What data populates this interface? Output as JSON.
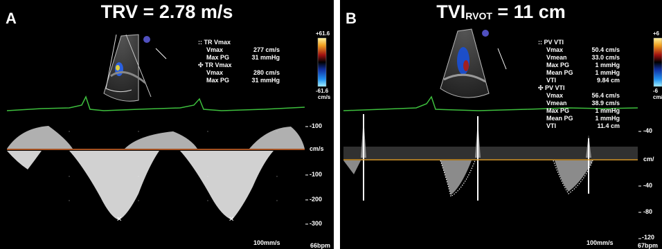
{
  "panel_a": {
    "letter": "A",
    "title": "TRV = 2.78 m/s",
    "measurements": {
      "group1": {
        "header": ":: TR Vmax",
        "rows": [
          {
            "label": "Vmax",
            "value": "277 cm/s"
          },
          {
            "label": "Max PG",
            "value": "31 mmHg"
          }
        ]
      },
      "group2": {
        "header": "✣ TR Vmax",
        "rows": [
          {
            "label": "Vmax",
            "value": "280 cm/s"
          },
          {
            "label": "Max PG",
            "value": "31 mmHg"
          }
        ]
      }
    },
    "color_scale": {
      "top": "+61.6",
      "bottom": "-61.6",
      "unit": "cm/s"
    },
    "axis_ticks": [
      "-100",
      "cm/s",
      "-100",
      "-200",
      "-300"
    ],
    "sweep_speed": "100mm/s",
    "heart_rate": "66bpm"
  },
  "panel_b": {
    "letter": "B",
    "title_main": "TVI",
    "title_sub": "RVOT",
    "title_rest": " = 11 cm",
    "measurements": {
      "group1": {
        "header": ":: PV VTI",
        "rows": [
          {
            "label": "Vmax",
            "value": "50.4 cm/s"
          },
          {
            "label": "Vmean",
            "value": "33.0 cm/s"
          },
          {
            "label": "Max PG",
            "value": "1 mmHg"
          },
          {
            "label": "Mean PG",
            "value": "1 mmHg"
          },
          {
            "label": "VTI",
            "value": "9.84 cm"
          }
        ]
      },
      "group2": {
        "header": "✣ PV VTI",
        "rows": [
          {
            "label": "Vmax",
            "value": "56.4 cm/s"
          },
          {
            "label": "Vmean",
            "value": "38.9 cm/s"
          },
          {
            "label": "Max PG",
            "value": "1 mmHg"
          },
          {
            "label": "Mean PG",
            "value": "1 mmHg"
          },
          {
            "label": "VTI",
            "value": "11.4 cm"
          }
        ]
      }
    },
    "color_scale": {
      "top": "+6",
      "bottom": "-6",
      "unit": "cm/s"
    },
    "axis_ticks": [
      "-40",
      "cm/",
      "-40",
      "-80",
      "-120"
    ],
    "sweep_speed": "100mm/s",
    "heart_rate": "67bpm"
  }
}
